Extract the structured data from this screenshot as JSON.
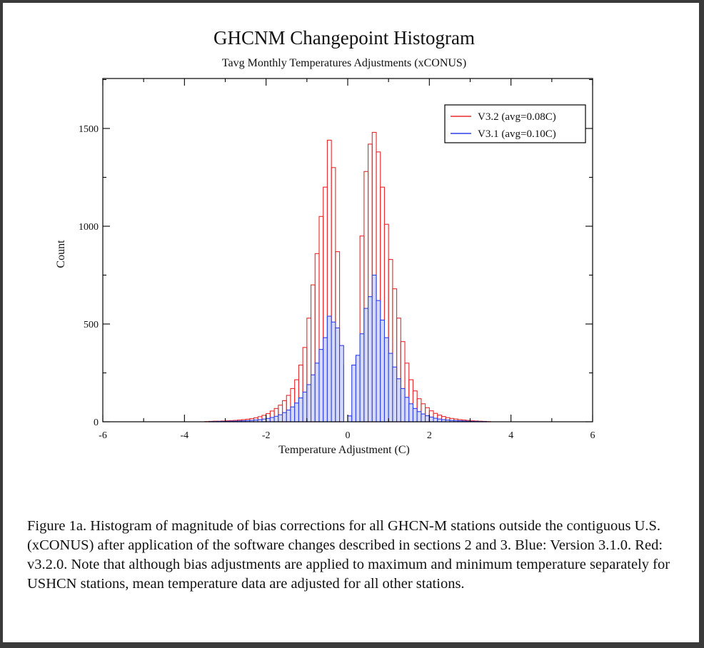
{
  "chart_data": {
    "type": "bar",
    "title": "GHCNM Changepoint Histogram",
    "subtitle": "Tavg Monthly Temperatures Adjustments (xCONUS)",
    "xlabel": "Temperature Adjustment (C)",
    "ylabel": "Count",
    "xlim": [
      -6,
      6
    ],
    "ylim": [
      0,
      1500
    ],
    "x_ticks": [
      "-6",
      "-4",
      "-2",
      "0",
      "2",
      "4",
      "6"
    ],
    "y_ticks": [
      "0",
      "500",
      "1000",
      "1500"
    ],
    "grid": false,
    "legend_position": "top-right",
    "bin_width": 0.1,
    "x": [
      -3.5,
      -3.4,
      -3.3,
      -3.2,
      -3.1,
      -3.0,
      -2.9,
      -2.8,
      -2.7,
      -2.6,
      -2.5,
      -2.4,
      -2.3,
      -2.2,
      -2.1,
      -2.0,
      -1.9,
      -1.8,
      -1.7,
      -1.6,
      -1.5,
      -1.4,
      -1.3,
      -1.2,
      -1.1,
      -1.0,
      -0.9,
      -0.8,
      -0.7,
      -0.6,
      -0.5,
      -0.4,
      -0.3,
      -0.2,
      -0.1,
      0.0,
      0.1,
      0.2,
      0.3,
      0.4,
      0.5,
      0.6,
      0.7,
      0.8,
      0.9,
      1.0,
      1.1,
      1.2,
      1.3,
      1.4,
      1.5,
      1.6,
      1.7,
      1.8,
      1.9,
      2.0,
      2.1,
      2.2,
      2.3,
      2.4,
      2.5,
      2.6,
      2.7,
      2.8,
      2.9,
      3.0,
      3.1,
      3.2,
      3.3,
      3.4
    ],
    "series": [
      {
        "name": "V3.2 (avg=0.08C)",
        "color": "#e8282a",
        "values": [
          1,
          2,
          3,
          3,
          4,
          5,
          6,
          7,
          9,
          11,
          13,
          16,
          20,
          26,
          33,
          42,
          55,
          68,
          85,
          108,
          135,
          170,
          215,
          290,
          380,
          530,
          700,
          860,
          1050,
          1200,
          1440,
          1300,
          870,
          290,
          0,
          0,
          30,
          330,
          950,
          1280,
          1420,
          1480,
          1380,
          1200,
          1010,
          830,
          680,
          530,
          410,
          300,
          215,
          158,
          118,
          92,
          72,
          56,
          43,
          34,
          27,
          21,
          17,
          14,
          11,
          9,
          7,
          5,
          4,
          3,
          2,
          1
        ]
      },
      {
        "name": "V3.1 (avg=0.10C)",
        "color": "#2e3fe8",
        "values": [
          0,
          1,
          1,
          2,
          2,
          2,
          3,
          3,
          4,
          5,
          6,
          7,
          9,
          11,
          14,
          17,
          22,
          28,
          36,
          47,
          60,
          76,
          96,
          122,
          152,
          190,
          240,
          300,
          370,
          430,
          540,
          510,
          480,
          390,
          0,
          30,
          290,
          340,
          450,
          580,
          640,
          750,
          620,
          520,
          430,
          350,
          280,
          220,
          170,
          125,
          92,
          68,
          52,
          40,
          31,
          24,
          18,
          14,
          11,
          9,
          7,
          6,
          5,
          4,
          3,
          2,
          2,
          1,
          1,
          0
        ]
      }
    ]
  },
  "caption": "Figure 1a. Histogram of magnitude of bias corrections for all GHCN-M stations outside the contiguous U.S. (xCONUS) after application of the software changes described in sections 2 and 3. Blue: Version 3.1.0. Red: v3.2.0. Note that although bias adjustments are applied to maximum and minimum temperature separately for USHCN stations, mean temperature data are adjusted for all other stations."
}
